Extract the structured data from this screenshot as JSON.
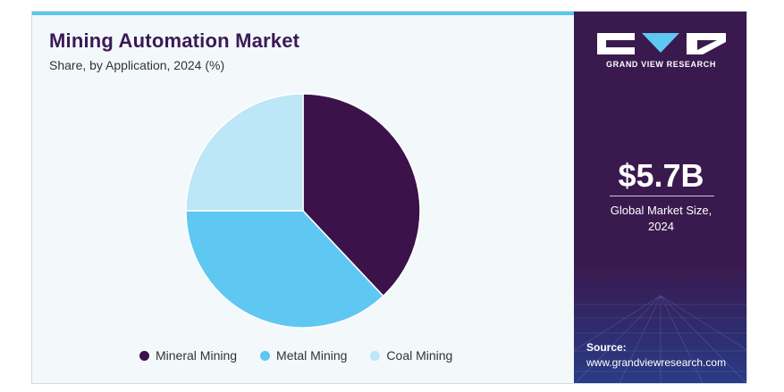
{
  "header": {
    "title": "Mining Automation Market",
    "subtitle": "Share, by Application, 2024 (%)"
  },
  "chart_data": {
    "type": "pie",
    "categories": [
      "Mineral Mining",
      "Metal Mining",
      "Coal Mining"
    ],
    "values": [
      38,
      37,
      25
    ],
    "colors": [
      "#3b1249",
      "#5ec8f2",
      "#bde6f7"
    ],
    "legend_position": "bottom"
  },
  "sidebar": {
    "brand": "GRAND VIEW RESEARCH",
    "logo_icon": "grand-view-research-logo",
    "market_value": "$5.7B",
    "market_label_line1": "Global Market Size,",
    "market_label_line2": "2024",
    "source_label": "Source:",
    "source_url": "www.grandviewresearch.com"
  }
}
